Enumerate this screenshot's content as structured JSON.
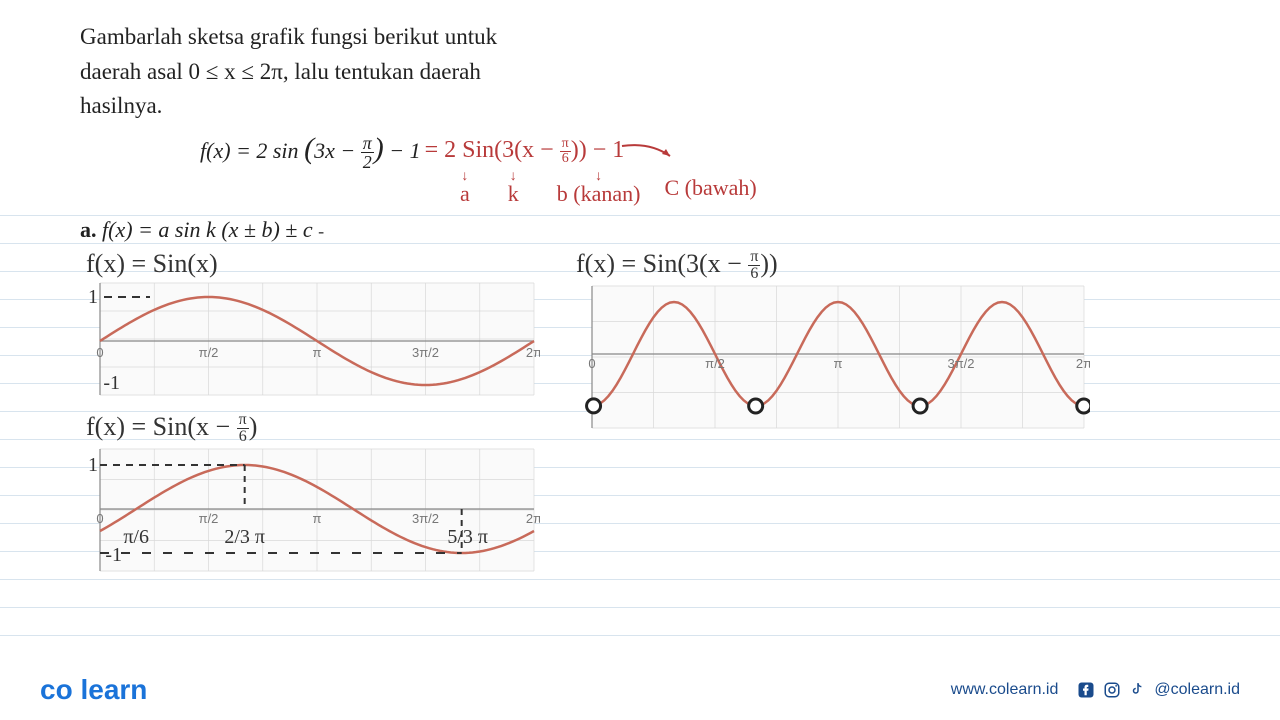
{
  "problem": {
    "line1": "Gambarlah sketsa grafik fungsi berikut untuk",
    "line2": "daerah asal 0 ≤ x ≤ 2π, lalu tentukan daerah",
    "line3": "hasilnya."
  },
  "formula": {
    "printed_lhs": "f(x) = 2 sin",
    "printed_inner": "3x − ",
    "printed_frac_num": "π",
    "printed_frac_den": "2",
    "printed_tail": " − 1",
    "hw_eq": " = 2 Sin(3(x − ",
    "hw_frac_num": "π",
    "hw_frac_den": "6",
    "hw_tail": ")) − 1"
  },
  "annotations": {
    "a": "a",
    "k": "k",
    "b": "b (kanan)",
    "c": "C (bawah)"
  },
  "part_a": "a.  f(x) = a sin k (x ± b) ± c",
  "graph1": {
    "title": "f(x) = Sin(x)",
    "type": "line",
    "xlim": [
      0,
      6.283
    ],
    "ylim": [
      -1.2,
      1.2
    ],
    "xticks": [
      "0",
      "π/2",
      "π",
      "3π/2",
      "2π"
    ],
    "yticks_hw": [
      "1",
      "-1"
    ],
    "curve_color": "#c86a5a",
    "grid_color": "#d8d8d8",
    "axis_color": "#888888",
    "bg": "#fafafa",
    "samples": 60
  },
  "graph2": {
    "title": "f(x) = Sin(x − π/6)",
    "type": "line",
    "xlim": [
      0,
      6.283
    ],
    "ylim": [
      -1.2,
      1.2
    ],
    "xticks": [
      "0",
      "π/2",
      "π",
      "3π/2",
      "2π"
    ],
    "hw_xticks": [
      "π/6",
      "2/3 π",
      "5/3 π"
    ],
    "yticks_hw": [
      "1",
      "-1"
    ],
    "curve_color": "#c86a5a",
    "dashed_color": "#333333",
    "grid_color": "#d8d8d8",
    "axis_color": "#888888",
    "bg": "#fafafa",
    "phase_shift": 0.5236
  },
  "graph3": {
    "title": "f(x) = Sin(3(x − π/6))",
    "type": "line",
    "xlim": [
      0,
      6.283
    ],
    "ylim": [
      -1.2,
      1.2
    ],
    "xticks": [
      "0",
      "π/2",
      "π",
      "3π/2",
      "2π"
    ],
    "curve_color": "#c86a5a",
    "grid_color": "#d8d8d8",
    "axis_color": "#888888",
    "bg": "#fafafa",
    "zero_marker_color": "#222222",
    "frequency": 3,
    "phase_shift": 0.5236
  },
  "footer": {
    "logo": "co learn",
    "url": "www.colearn.id",
    "handle": "@colearn.id"
  },
  "colors": {
    "text": "#222222",
    "handwritten_red": "#b83a3a",
    "handwritten_black": "#333333",
    "brand_blue": "#1a73d9",
    "footer_blue": "#1a4b8c"
  }
}
